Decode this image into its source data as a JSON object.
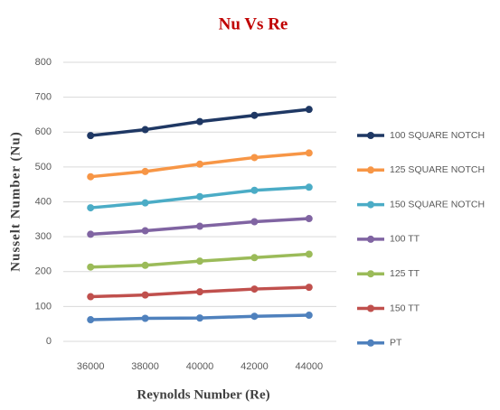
{
  "chart_data": {
    "type": "line",
    "title": "Nu Vs Re",
    "x_label": "Reynolds Number (Re)",
    "y_label": "Nusselt Number (Nu)",
    "x": [
      36000,
      38000,
      40000,
      42000,
      44000
    ],
    "xlim": [
      35000,
      45000
    ],
    "xticks": [
      36000,
      38000,
      40000,
      42000,
      44000
    ],
    "ylim": [
      0,
      800
    ],
    "yticks": [
      0,
      100,
      200,
      300,
      400,
      500,
      600,
      700,
      800
    ],
    "grid": true,
    "legend": "right",
    "series": [
      {
        "name": "100 SQUARE NOTCH",
        "color": "#1f3864",
        "values": [
          590,
          607,
          630,
          648,
          665
        ]
      },
      {
        "name": "125 SQUARE NOTCH",
        "color": "#f79646",
        "values": [
          472,
          487,
          508,
          527,
          540
        ]
      },
      {
        "name": "150 SQUARE NOTCH",
        "color": "#4bacc6",
        "values": [
          383,
          397,
          415,
          433,
          442
        ]
      },
      {
        "name": "100 TT",
        "color": "#8064a2",
        "values": [
          307,
          317,
          330,
          343,
          352
        ]
      },
      {
        "name": "125 TT",
        "color": "#9bbb59",
        "values": [
          213,
          218,
          230,
          240,
          250
        ]
      },
      {
        "name": "150 TT",
        "color": "#c0504d",
        "values": [
          128,
          133,
          142,
          150,
          155
        ]
      },
      {
        "name": "PT",
        "color": "#4f81bd",
        "values": [
          62,
          66,
          67,
          72,
          75
        ]
      }
    ]
  }
}
